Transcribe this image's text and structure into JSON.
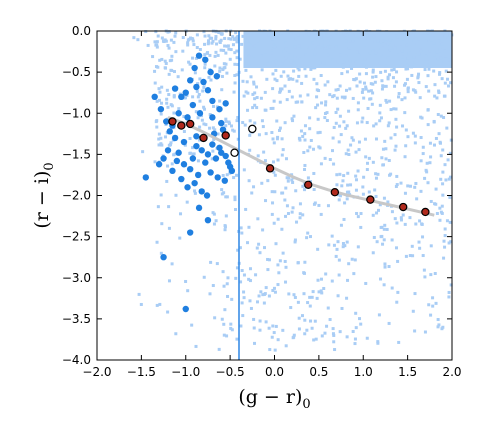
{
  "chart_data": {
    "type": "scatter",
    "xlabel": "(g − r)",
    "xlabel_sub": "0",
    "ylabel": "(r − i)",
    "ylabel_sub": "0",
    "xlim": [
      -2.0,
      2.0
    ],
    "ylim": [
      -4.0,
      0.0
    ],
    "x_ticks": [
      -2.0,
      -1.5,
      -1.0,
      -0.5,
      0.0,
      0.5,
      1.0,
      1.5,
      2.0
    ],
    "x_tick_labels": [
      "−2.0",
      "−1.5",
      "−1.0",
      "−0.5",
      "0.0",
      "0.5",
      "1.0",
      "1.5",
      "2.0"
    ],
    "y_ticks": [
      0.0,
      -0.5,
      -1.0,
      -1.5,
      -2.0,
      -2.5,
      -3.0,
      -3.5,
      -4.0
    ],
    "y_tick_labels": [
      "0.0",
      "−0.5",
      "−1.0",
      "−1.5",
      "−2.0",
      "−2.5",
      "−3.0",
      "−3.5",
      "−4.0"
    ],
    "grid": false,
    "legend": "none",
    "vertical_line_x": -0.4,
    "colors": {
      "background_points": "#a9cdf5",
      "selected_points": "#1f7fe0",
      "vertical_line": "#3a8ee6",
      "track_line": "#c8c8c8",
      "track_markers": "#b0291c",
      "open_markers": "#ffffff"
    },
    "background_density": {
      "description_free": true,
      "dense_region_x": [
        -0.35,
        2.0
      ],
      "dense_region_y": [
        -0.45,
        0.0
      ]
    },
    "blue_points": {
      "x": [
        -0.85,
        -0.78,
        -0.72,
        -0.9,
        -0.95,
        -0.88,
        -0.8,
        -0.75,
        -0.65,
        -0.7,
        -1.0,
        -1.05,
        -0.92,
        -0.84,
        -0.7,
        -0.62,
        -0.55,
        -0.6,
        -0.58,
        -0.68,
        -0.98,
        -1.08,
        -1.15,
        -1.18,
        -1.12,
        -1.02,
        -0.88,
        -0.82,
        -0.75,
        -0.66,
        -0.6,
        -0.52,
        -0.5,
        -0.48,
        -1.2,
        -1.25,
        -1.3,
        -1.35,
        -1.28,
        -1.22,
        -1.1,
        -0.95,
        -0.86,
        -0.78,
        -0.72,
        -0.64,
        -0.56,
        -1.15,
        -1.05,
        -0.98,
        -0.9,
        -0.82,
        -0.76,
        -1.45,
        -1.25,
        -0.95,
        -0.75,
        -1.0,
        -0.85,
        -0.62,
        -0.55,
        -1.12,
        -1.08,
        -1.02,
        -0.92,
        -0.88,
        -0.7
      ],
      "y": [
        -0.3,
        -0.35,
        -0.5,
        -0.45,
        -0.6,
        -0.68,
        -0.62,
        -0.72,
        -0.55,
        -0.85,
        -0.75,
        -0.8,
        -0.9,
        -1.0,
        -1.05,
        -0.95,
        -0.88,
        -1.12,
        -1.2,
        -1.25,
        -1.05,
        -1.0,
        -1.15,
        -1.22,
        -1.3,
        -1.35,
        -1.4,
        -1.45,
        -1.5,
        -1.55,
        -1.48,
        -1.6,
        -1.65,
        -1.7,
        -1.45,
        -1.55,
        -1.62,
        -0.8,
        -0.95,
        -1.1,
        -1.58,
        -1.68,
        -1.75,
        -1.6,
        -1.72,
        -1.78,
        -1.82,
        -1.7,
        -1.8,
        -1.9,
        -1.85,
        -1.95,
        -2.0,
        -1.78,
        -2.75,
        -2.45,
        -2.3,
        -3.38,
        -2.15,
        -1.42,
        -1.52,
        -0.7,
        -1.48,
        -1.62,
        -1.55,
        -1.28,
        -1.38
      ]
    },
    "track": {
      "x": [
        -1.15,
        -1.05,
        -0.95,
        -0.8,
        -0.55,
        -0.45,
        -0.25,
        -0.05,
        0.38,
        0.68,
        1.08,
        1.45,
        1.7
      ],
      "y": [
        -1.1,
        -1.15,
        -1.13,
        -1.3,
        -1.27,
        -1.48,
        -1.19,
        -1.67,
        -1.87,
        -1.96,
        -2.05,
        -2.14,
        -2.2
      ],
      "open": [
        false,
        false,
        false,
        false,
        false,
        true,
        true,
        false,
        false,
        false,
        false,
        false,
        false
      ]
    },
    "curve": {
      "x": [
        -1.2,
        -1.0,
        -0.8,
        -0.6,
        -0.4,
        -0.2,
        0.0,
        0.2,
        0.4,
        0.6,
        0.8,
        1.0,
        1.2,
        1.4,
        1.6,
        1.8
      ],
      "y": [
        -1.05,
        -1.13,
        -1.23,
        -1.34,
        -1.45,
        -1.56,
        -1.67,
        -1.77,
        -1.86,
        -1.93,
        -1.99,
        -2.04,
        -2.09,
        -2.14,
        -2.19,
        -2.24
      ]
    }
  }
}
